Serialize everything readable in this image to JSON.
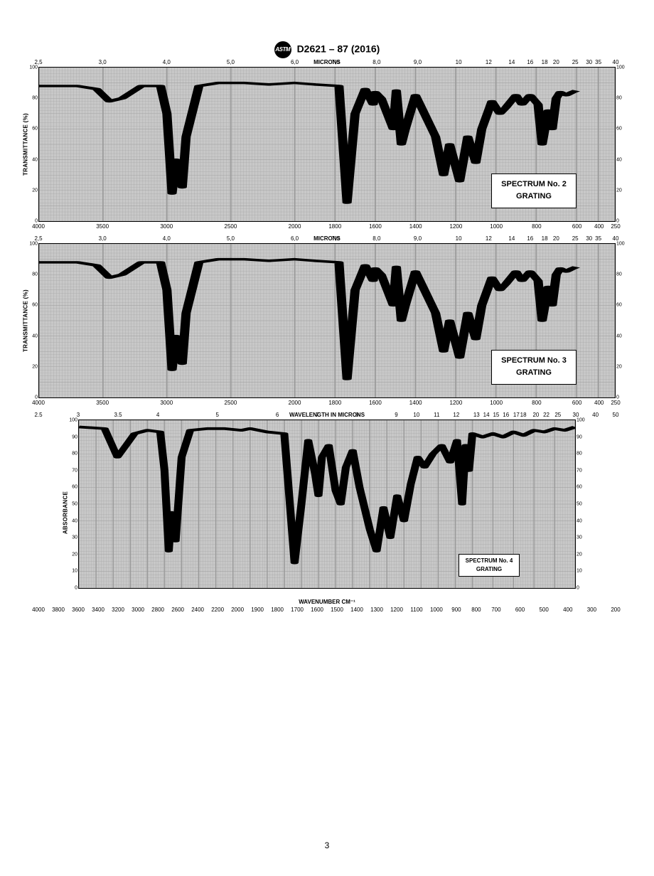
{
  "header": {
    "logo_text": "ASTM",
    "doc_id": "D2621 – 87 (2016)"
  },
  "page_number": "3",
  "spectrum12_common": {
    "ylabel": "TRANSMITTANCE (%)",
    "top_label": "MICRONS",
    "ylim": [
      0,
      100
    ],
    "ytick_step": 20,
    "x_wavenumber_ticks": [
      4000,
      3500,
      3000,
      2500,
      2000,
      1800,
      1600,
      1400,
      1200,
      1000,
      800,
      600,
      400,
      250
    ],
    "x_micron_ticks": [
      "2,5",
      "3,0",
      "4,0",
      "5,0",
      "6,0",
      "7,0",
      "8,0",
      "9,0",
      "10",
      "12",
      "14",
      "16",
      "18",
      "20",
      "25",
      "30",
      "35",
      "40"
    ],
    "x_micron_pos_pct": [
      0,
      11.1,
      22.2,
      33.3,
      44.4,
      51.5,
      58.6,
      65.7,
      72.8,
      78.0,
      82.0,
      85.2,
      87.7,
      89.7,
      93.0,
      95.4,
      97.0,
      100
    ],
    "line_color": "#000000",
    "line_width": 2.0,
    "grid_color": "#9a9a9a",
    "bg_color": "#c8c8c8",
    "trace_wn_t": [
      [
        4000,
        88
      ],
      [
        3700,
        88
      ],
      [
        3550,
        86
      ],
      [
        3450,
        78
      ],
      [
        3350,
        80
      ],
      [
        3200,
        88
      ],
      [
        3050,
        88
      ],
      [
        3000,
        70
      ],
      [
        2960,
        18
      ],
      [
        2930,
        40
      ],
      [
        2880,
        22
      ],
      [
        2850,
        55
      ],
      [
        2750,
        88
      ],
      [
        2600,
        90
      ],
      [
        2400,
        90
      ],
      [
        2200,
        89
      ],
      [
        2000,
        90
      ],
      [
        1900,
        89
      ],
      [
        1780,
        88
      ],
      [
        1740,
        12
      ],
      [
        1700,
        70
      ],
      [
        1650,
        86
      ],
      [
        1610,
        76
      ],
      [
        1600,
        84
      ],
      [
        1570,
        80
      ],
      [
        1510,
        60
      ],
      [
        1495,
        85
      ],
      [
        1470,
        50
      ],
      [
        1450,
        60
      ],
      [
        1400,
        82
      ],
      [
        1370,
        74
      ],
      [
        1300,
        55
      ],
      [
        1260,
        30
      ],
      [
        1230,
        50
      ],
      [
        1180,
        26
      ],
      [
        1140,
        55
      ],
      [
        1100,
        38
      ],
      [
        1070,
        60
      ],
      [
        1020,
        78
      ],
      [
        980,
        70
      ],
      [
        950,
        74
      ],
      [
        900,
        82
      ],
      [
        870,
        76
      ],
      [
        830,
        82
      ],
      [
        790,
        76
      ],
      [
        770,
        50
      ],
      [
        740,
        72
      ],
      [
        720,
        60
      ],
      [
        700,
        80
      ],
      [
        680,
        84
      ],
      [
        650,
        82
      ],
      [
        620,
        84
      ],
      [
        600,
        85
      ]
    ]
  },
  "spectrum2": {
    "box_line1": "SPECTRUM No. 2",
    "box_line2": "GRATING"
  },
  "spectrum3": {
    "box_line1": "SPECTRUM No. 3",
    "box_line2": "GRATING"
  },
  "spectrum4": {
    "ylabel": "ABSORBANCE",
    "top_label": "WAVELENGTH IN MICRONS",
    "bottom_label": "WAVENUMBER CM⁻¹",
    "box_line1": "SPECTRUM No. 4",
    "box_line2": "GRATING",
    "ylim": [
      0,
      100
    ],
    "ytick_step": 10,
    "x_wavenumber_ticks": [
      4000,
      3800,
      3600,
      3400,
      3200,
      3000,
      2800,
      2600,
      2400,
      2200,
      2000,
      1900,
      1800,
      1700,
      1600,
      1500,
      1400,
      1300,
      1200,
      1100,
      1000,
      900,
      800,
      700,
      600,
      500,
      400,
      300,
      200
    ],
    "x_micron_ticks": [
      "2.5",
      "3",
      "3.5",
      "4",
      "5",
      "6",
      "7",
      "8",
      "9",
      "10",
      "11",
      "12",
      "13",
      "14",
      "15",
      "16",
      "17",
      "18",
      "20",
      "22",
      "25",
      "30",
      "40",
      "50"
    ],
    "x_micron_pos_pct": [
      0,
      6.9,
      13.8,
      20.7,
      31.0,
      41.4,
      48.3,
      55.2,
      62.0,
      65.5,
      69.0,
      72.4,
      75.9,
      77.6,
      79.3,
      81.0,
      82.8,
      84.0,
      86.2,
      88.0,
      90.0,
      93.1,
      96.5,
      100
    ],
    "line_color": "#000000",
    "line_width": 2.0,
    "grid_color": "#9a9a9a",
    "bg_color": "#c8c8c8",
    "trace_wn_t": [
      [
        4000,
        96
      ],
      [
        3700,
        95
      ],
      [
        3550,
        78
      ],
      [
        3450,
        85
      ],
      [
        3350,
        92
      ],
      [
        3200,
        94
      ],
      [
        3050,
        93
      ],
      [
        3000,
        70
      ],
      [
        2950,
        22
      ],
      [
        2920,
        45
      ],
      [
        2870,
        28
      ],
      [
        2800,
        78
      ],
      [
        2700,
        94
      ],
      [
        2500,
        95
      ],
      [
        2300,
        95
      ],
      [
        2100,
        94
      ],
      [
        2000,
        95
      ],
      [
        1900,
        93
      ],
      [
        1800,
        92
      ],
      [
        1740,
        15
      ],
      [
        1700,
        50
      ],
      [
        1660,
        88
      ],
      [
        1620,
        68
      ],
      [
        1600,
        55
      ],
      [
        1580,
        78
      ],
      [
        1540,
        85
      ],
      [
        1500,
        58
      ],
      [
        1470,
        50
      ],
      [
        1440,
        72
      ],
      [
        1400,
        82
      ],
      [
        1360,
        60
      ],
      [
        1300,
        35
      ],
      [
        1260,
        22
      ],
      [
        1220,
        48
      ],
      [
        1180,
        30
      ],
      [
        1140,
        55
      ],
      [
        1100,
        40
      ],
      [
        1060,
        62
      ],
      [
        1020,
        78
      ],
      [
        980,
        72
      ],
      [
        930,
        80
      ],
      [
        880,
        85
      ],
      [
        830,
        75
      ],
      [
        790,
        88
      ],
      [
        760,
        50
      ],
      [
        740,
        85
      ],
      [
        720,
        70
      ],
      [
        700,
        92
      ],
      [
        650,
        90
      ],
      [
        600,
        92
      ],
      [
        550,
        90
      ],
      [
        500,
        93
      ],
      [
        450,
        91
      ],
      [
        400,
        94
      ],
      [
        350,
        93
      ],
      [
        300,
        95
      ],
      [
        250,
        94
      ],
      [
        200,
        96
      ]
    ]
  }
}
